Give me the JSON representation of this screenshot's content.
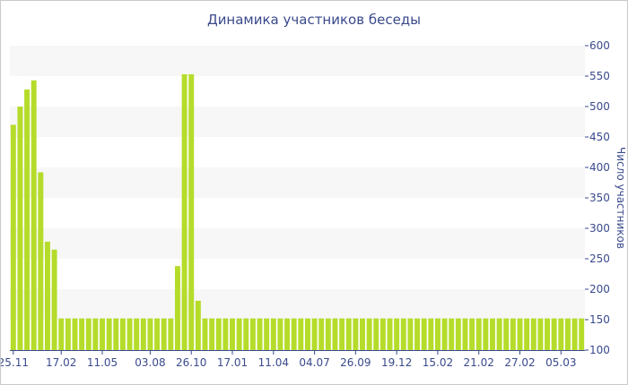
{
  "chart_data": {
    "type": "bar",
    "title": "Динамика участников беседы",
    "ylabel": "Число участников",
    "xlabel": "",
    "ylim": [
      100,
      600
    ],
    "yticks": [
      100,
      150,
      200,
      250,
      300,
      350,
      400,
      450,
      500,
      550,
      600
    ],
    "x_tick_labels": [
      {
        "label": "25.11",
        "index": 0
      },
      {
        "label": "17.02",
        "index": 7
      },
      {
        "label": "11.05",
        "index": 13
      },
      {
        "label": "03.08",
        "index": 20
      },
      {
        "label": "26.10",
        "index": 26
      },
      {
        "label": "17.01",
        "index": 32
      },
      {
        "label": "11.04",
        "index": 38
      },
      {
        "label": "04.07",
        "index": 44
      },
      {
        "label": "26.09",
        "index": 50
      },
      {
        "label": "19.12",
        "index": 56
      },
      {
        "label": "15.02",
        "index": 62
      },
      {
        "label": "21.02",
        "index": 68
      },
      {
        "label": "27.02",
        "index": 74
      },
      {
        "label": "05.03",
        "index": 80
      }
    ],
    "values": [
      470,
      500,
      528,
      543,
      392,
      278,
      265,
      152,
      152,
      152,
      152,
      152,
      152,
      152,
      152,
      152,
      152,
      152,
      152,
      152,
      152,
      152,
      152,
      152,
      238,
      553,
      553,
      181,
      152,
      152,
      152,
      152,
      152,
      152,
      152,
      152,
      152,
      152,
      152,
      152,
      152,
      152,
      152,
      152,
      152,
      152,
      152,
      152,
      152,
      152,
      152,
      152,
      152,
      152,
      152,
      152,
      152,
      152,
      152,
      152,
      152,
      152,
      152,
      152,
      152,
      152,
      152,
      152,
      152,
      152,
      152,
      152,
      152,
      152,
      152,
      152,
      152,
      152,
      152,
      152,
      152,
      152,
      152,
      152
    ],
    "bar_color": "#b5dc2a",
    "band_color": "#f7f7f7",
    "text_color": "#3a4a8c",
    "grid": false,
    "legend": "none"
  }
}
